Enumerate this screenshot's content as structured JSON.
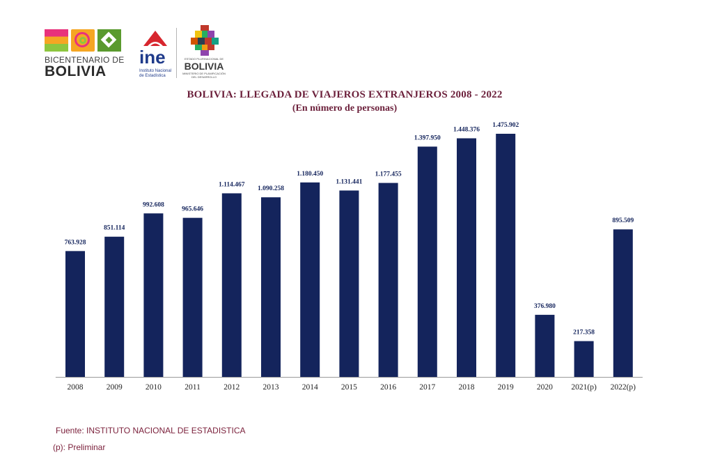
{
  "logos": {
    "bicentenario_line1": "BICENTENARIO DE",
    "bicentenario_line2": "BOLIVIA",
    "ine_word": "ine",
    "ine_sub": "Instituto Nacional de Estadística",
    "estado_small": "ESTADO PLURINACIONAL DE",
    "estado_big": "BOLIVIA",
    "estado_sub": "MINISTERIO DE PLANIFICACIÓN DEL DESARROLLO"
  },
  "chart_data": {
    "type": "bar",
    "title": "BOLIVIA: LLEGADA DE VIAJEROS EXTRANJEROS  2008 - 2022",
    "subtitle": "(En número de personas)",
    "categories": [
      "2008",
      "2009",
      "2010",
      "2011",
      "2012",
      "2013",
      "2014",
      "2015",
      "2016",
      "2017",
      "2018",
      "2019",
      "2020",
      "2021(p)",
      "2022(p)"
    ],
    "values": [
      763928,
      851114,
      992608,
      965646,
      1114467,
      1090258,
      1180450,
      1131441,
      1177455,
      1397950,
      1448376,
      1475902,
      376980,
      217358,
      895509
    ],
    "data_labels": [
      "763.928",
      "851.114",
      "992.608",
      "965.646",
      "1.114.467",
      "1.090.258",
      "1.180.450",
      "1.131.441",
      "1.177.455",
      "1.397.950",
      "1.448.376",
      "1.475.902",
      "376.980",
      "217.358",
      "895.509"
    ],
    "ylim": [
      0,
      1475902
    ],
    "bar_color": "#14245c",
    "xlabel": "",
    "ylabel": "",
    "grid": false,
    "legend": "none"
  },
  "footer": {
    "source": "Fuente: INSTITUTO NACIONAL DE ESTADISTICA",
    "note": "(p): Preliminar"
  },
  "colors": {
    "title": "#6b1f3a",
    "bars": "#14245c",
    "footer_text": "#7a1f3a"
  }
}
